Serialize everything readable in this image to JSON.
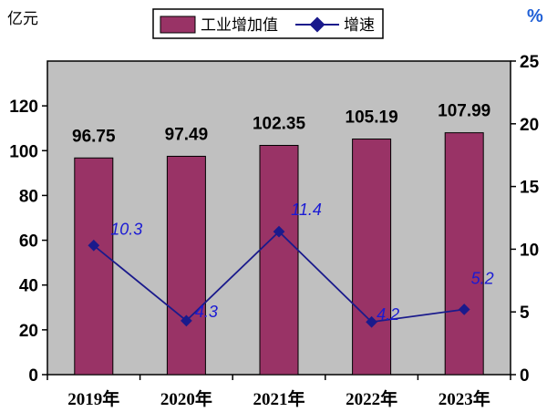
{
  "chart_data": {
    "type": "bar",
    "categories": [
      "2019年",
      "2020年",
      "2021年",
      "2022年",
      "2023年"
    ],
    "series": [
      {
        "name": "工业增加值",
        "kind": "bar",
        "axis": "left",
        "values": [
          96.75,
          97.49,
          102.35,
          105.19,
          107.99
        ],
        "color": "#993366"
      },
      {
        "name": "增速",
        "kind": "line",
        "axis": "right",
        "values": [
          10.3,
          4.3,
          11.4,
          4.2,
          5.2
        ],
        "color": "#1a1a8c"
      }
    ],
    "bar_labels": [
      "96.75",
      "97.49",
      "102.35",
      "105.19",
      "107.99"
    ],
    "rate_labels": [
      "10.3",
      "4.3",
      "11.4",
      "4.2",
      "5.2"
    ],
    "y_left": {
      "unit": "亿元",
      "ylim": [
        0,
        140
      ],
      "ticks": [
        0,
        20,
        40,
        60,
        80,
        100,
        120
      ]
    },
    "y_right": {
      "unit": "%",
      "ylim": [
        0,
        25
      ],
      "ticks": [
        0,
        5,
        10,
        15,
        20,
        25
      ]
    },
    "legend": {
      "position": "top-center",
      "items": [
        "工业增加值",
        "增速"
      ]
    },
    "plot_background": "#c0c0c0",
    "grid": false
  }
}
